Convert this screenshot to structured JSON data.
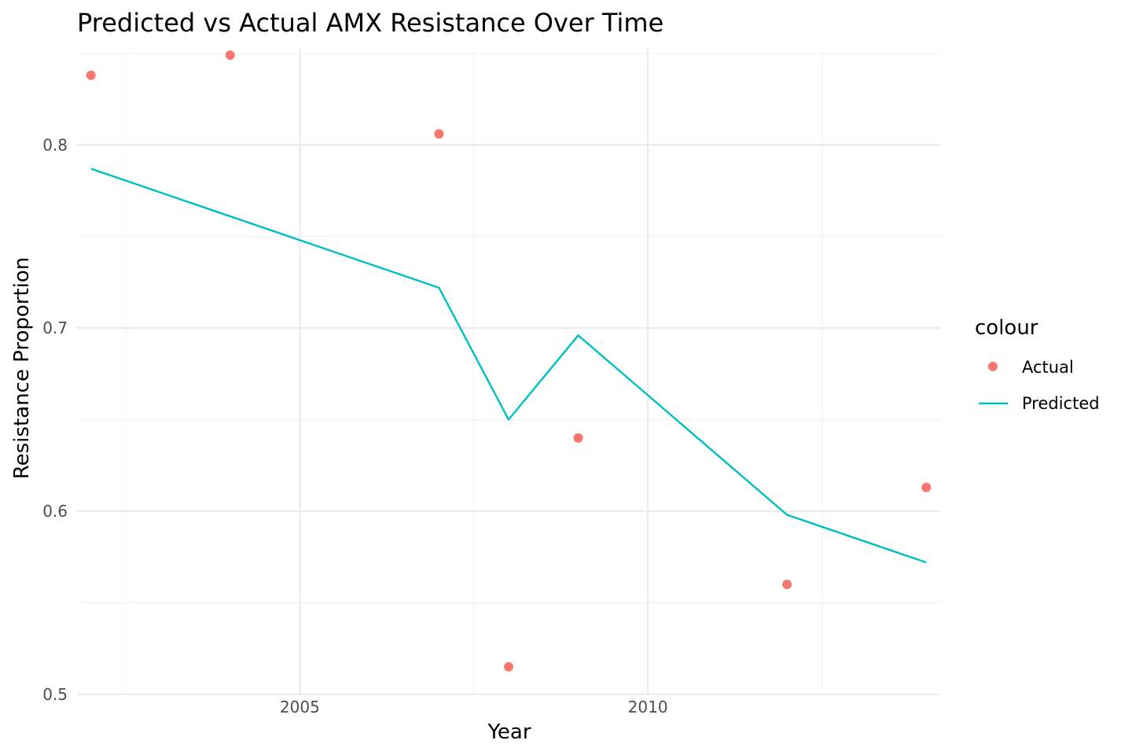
{
  "chart_data": {
    "type": "line",
    "title": "Predicted vs Actual AMX Resistance Over Time",
    "xlabel": "Year",
    "ylabel": "Resistance Proportion",
    "xlim": [
      2001.8,
      2014.2
    ],
    "ylim": [
      0.4995,
      0.8525
    ],
    "x_ticks": [
      2005,
      2010
    ],
    "x_tick_labels": [
      "2005",
      "2010"
    ],
    "x_minor_ticks": [
      2002.5,
      2007.5,
      2012.5
    ],
    "y_ticks": [
      0.5,
      0.6,
      0.7,
      0.8
    ],
    "y_tick_labels": [
      "0.5",
      "0.6",
      "0.7",
      "0.8"
    ],
    "y_minor_ticks": [
      0.55,
      0.65,
      0.75,
      0.85
    ],
    "grid": true,
    "legend": {
      "title": "colour",
      "position": "right",
      "entries": [
        {
          "label": "Actual",
          "kind": "point",
          "color": "#F8766D"
        },
        {
          "label": "Predicted",
          "kind": "line",
          "color": "#00BFC4"
        }
      ]
    },
    "series": [
      {
        "name": "Actual",
        "kind": "point",
        "color": "#F8766D",
        "x": [
          2002,
          2004,
          2007,
          2008,
          2009,
          2012,
          2014
        ],
        "y": [
          0.838,
          0.849,
          0.806,
          0.515,
          0.64,
          0.56,
          0.613
        ]
      },
      {
        "name": "Predicted",
        "kind": "line",
        "color": "#00BFC4",
        "x": [
          2002,
          2007,
          2008,
          2009,
          2012,
          2014
        ],
        "y": [
          0.787,
          0.722,
          0.65,
          0.696,
          0.598,
          0.572
        ]
      }
    ]
  }
}
